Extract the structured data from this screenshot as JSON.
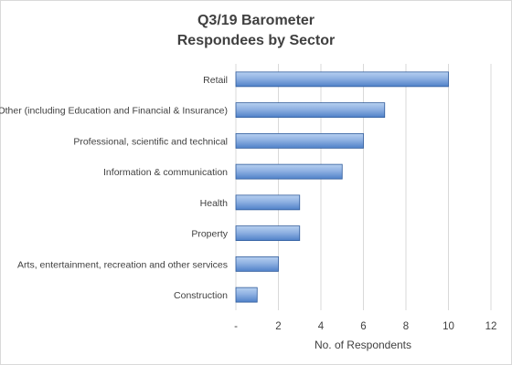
{
  "chart_data": {
    "type": "bar",
    "orientation": "horizontal",
    "title": "Q3/19 Barometer",
    "subtitle": "Respondees by Sector",
    "categories": [
      "Retail",
      "Other (including Education and Financial & Insurance)",
      "Professional, scientific and technical",
      "Information & communication",
      "Health",
      "Property",
      "Arts, entertainment, recreation and other services",
      "Construction"
    ],
    "values": [
      10,
      7,
      6,
      5,
      3,
      3,
      2,
      1
    ],
    "xlabel": "No. of Respondents",
    "ylabel": "",
    "xlim": [
      0,
      12
    ],
    "x_ticks": [
      0,
      2,
      4,
      6,
      8,
      10,
      12
    ],
    "x_tick_labels": [
      "-",
      "2",
      "4",
      "6",
      "8",
      "10",
      "12"
    ],
    "grid": "vertical",
    "legend": "none",
    "colors": {
      "bar_light": "#b7d0f0",
      "bar_dark": "#4f81c8",
      "bar_edge": "#2f5b9b",
      "grid": "#d9d9d9",
      "text": "#404040"
    }
  }
}
